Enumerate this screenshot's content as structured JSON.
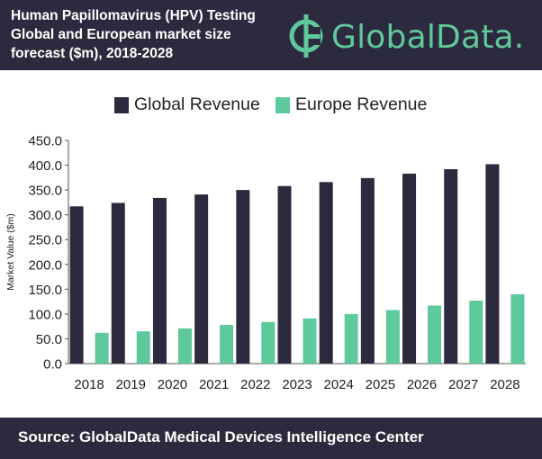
{
  "header": {
    "title_lines": [
      "Human Papillomavirus (HPV) Testing",
      "Global and European market size",
      "forecast ($m), 2018-2028"
    ],
    "logo_text": "GlobalData.",
    "logo_icon": "globaldata-logo-icon"
  },
  "footer": {
    "source_text": "Source:  GlobalData Medical Devices Intelligence Center"
  },
  "colors": {
    "global": "#2c2a3e",
    "europe": "#5ec99a",
    "brand_dark": "#2c2a3e",
    "brand_green": "#5ec99a"
  },
  "chart_data": {
    "type": "bar",
    "title": "Human Papillomavirus (HPV) Testing Global and European market size forecast ($m), 2018-2028",
    "xlabel": "",
    "ylabel": "Market Value ($m)",
    "categories": [
      "2018",
      "2019",
      "2020",
      "2021",
      "2022",
      "2023",
      "2024",
      "2025",
      "2026",
      "2027",
      "2028"
    ],
    "series": [
      {
        "name": "Global Revenue",
        "values": [
          317,
          324,
          334,
          341,
          350,
          358,
          366,
          374,
          383,
          392,
          402
        ]
      },
      {
        "name": "Europe Revenue",
        "values": [
          62,
          65,
          71,
          78,
          84,
          91,
          100,
          108,
          117,
          127,
          140
        ]
      }
    ],
    "ylim": [
      0,
      450
    ],
    "yticks": [
      "0.0",
      "50.0",
      "100.0",
      "150.0",
      "200.0",
      "250.0",
      "300.0",
      "350.0",
      "400.0",
      "450.0"
    ],
    "grid": false,
    "legend_position": "top"
  }
}
